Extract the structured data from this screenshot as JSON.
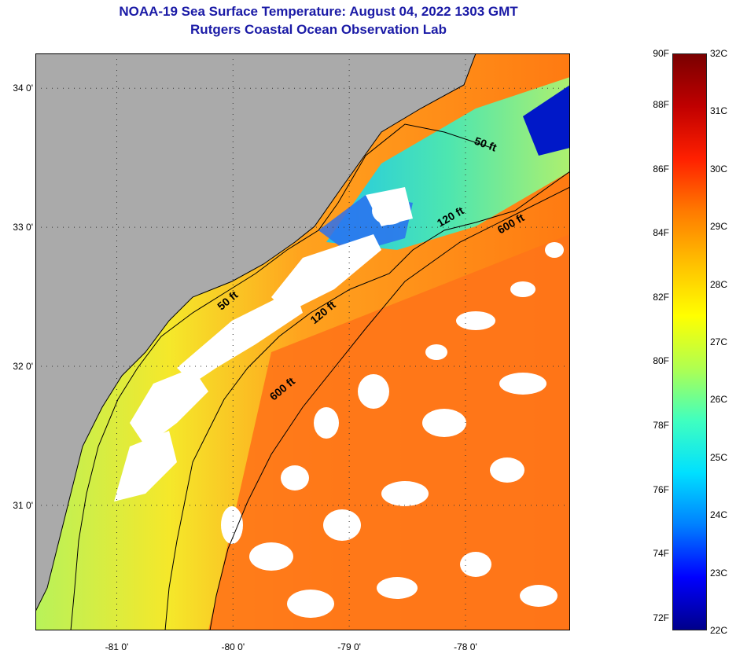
{
  "title": "NOAA-19 Sea Surface Temperature:  August 04, 2022 1303 GMT",
  "subtitle": "Rutgers Coastal Ocean Observation Lab",
  "map": {
    "lon_range": [
      -81.7,
      -77.1
    ],
    "lat_range": [
      30.1,
      34.25
    ],
    "lat_ticks": [
      {
        "value": 34,
        "label": "34 0'"
      },
      {
        "value": 33,
        "label": "33 0'"
      },
      {
        "value": 32,
        "label": "32 0'"
      },
      {
        "value": 31,
        "label": "31 0'"
      }
    ],
    "lon_ticks": [
      {
        "value": -81,
        "label": "-81 0'"
      },
      {
        "value": -80,
        "label": "-80 0'"
      },
      {
        "value": -79,
        "label": "-79 0'"
      },
      {
        "value": -78,
        "label": "-78 0'"
      }
    ],
    "contour_labels": [
      {
        "text": "50 ft",
        "lon": -77.93,
        "lat": 33.6,
        "rot": 20
      },
      {
        "text": "120 ft",
        "lon": -78.22,
        "lat": 33.0,
        "rot": -30
      },
      {
        "text": "600 ft",
        "lon": -77.7,
        "lat": 32.95,
        "rot": -30
      },
      {
        "text": "50 ft",
        "lon": -80.1,
        "lat": 32.4,
        "rot": -40
      },
      {
        "text": "120 ft",
        "lon": -79.3,
        "lat": 32.3,
        "rot": -40
      },
      {
        "text": "600 ft",
        "lon": -79.65,
        "lat": 31.75,
        "rot": -40
      }
    ],
    "colors": {
      "land": "#aaaaaa",
      "cloud": "#ffffff",
      "grid": "#333333"
    }
  },
  "colorbar": {
    "f_labels": [
      "90F",
      "88F",
      "86F",
      "84F",
      "82F",
      "80F",
      "78F",
      "76F",
      "74F",
      "72F"
    ],
    "c_labels": [
      "32C",
      "31C",
      "30C",
      "29C",
      "28C",
      "27C",
      "26C",
      "25C",
      "24C",
      "23C",
      "22C"
    ],
    "range_c": [
      22,
      32
    ],
    "colors": [
      "#00008b",
      "#0000ff",
      "#0080ff",
      "#00e0ff",
      "#40ffbf",
      "#b0ff50",
      "#ffff00",
      "#ffc000",
      "#ff7a00",
      "#ff2000",
      "#c00000",
      "#7a0000"
    ]
  }
}
